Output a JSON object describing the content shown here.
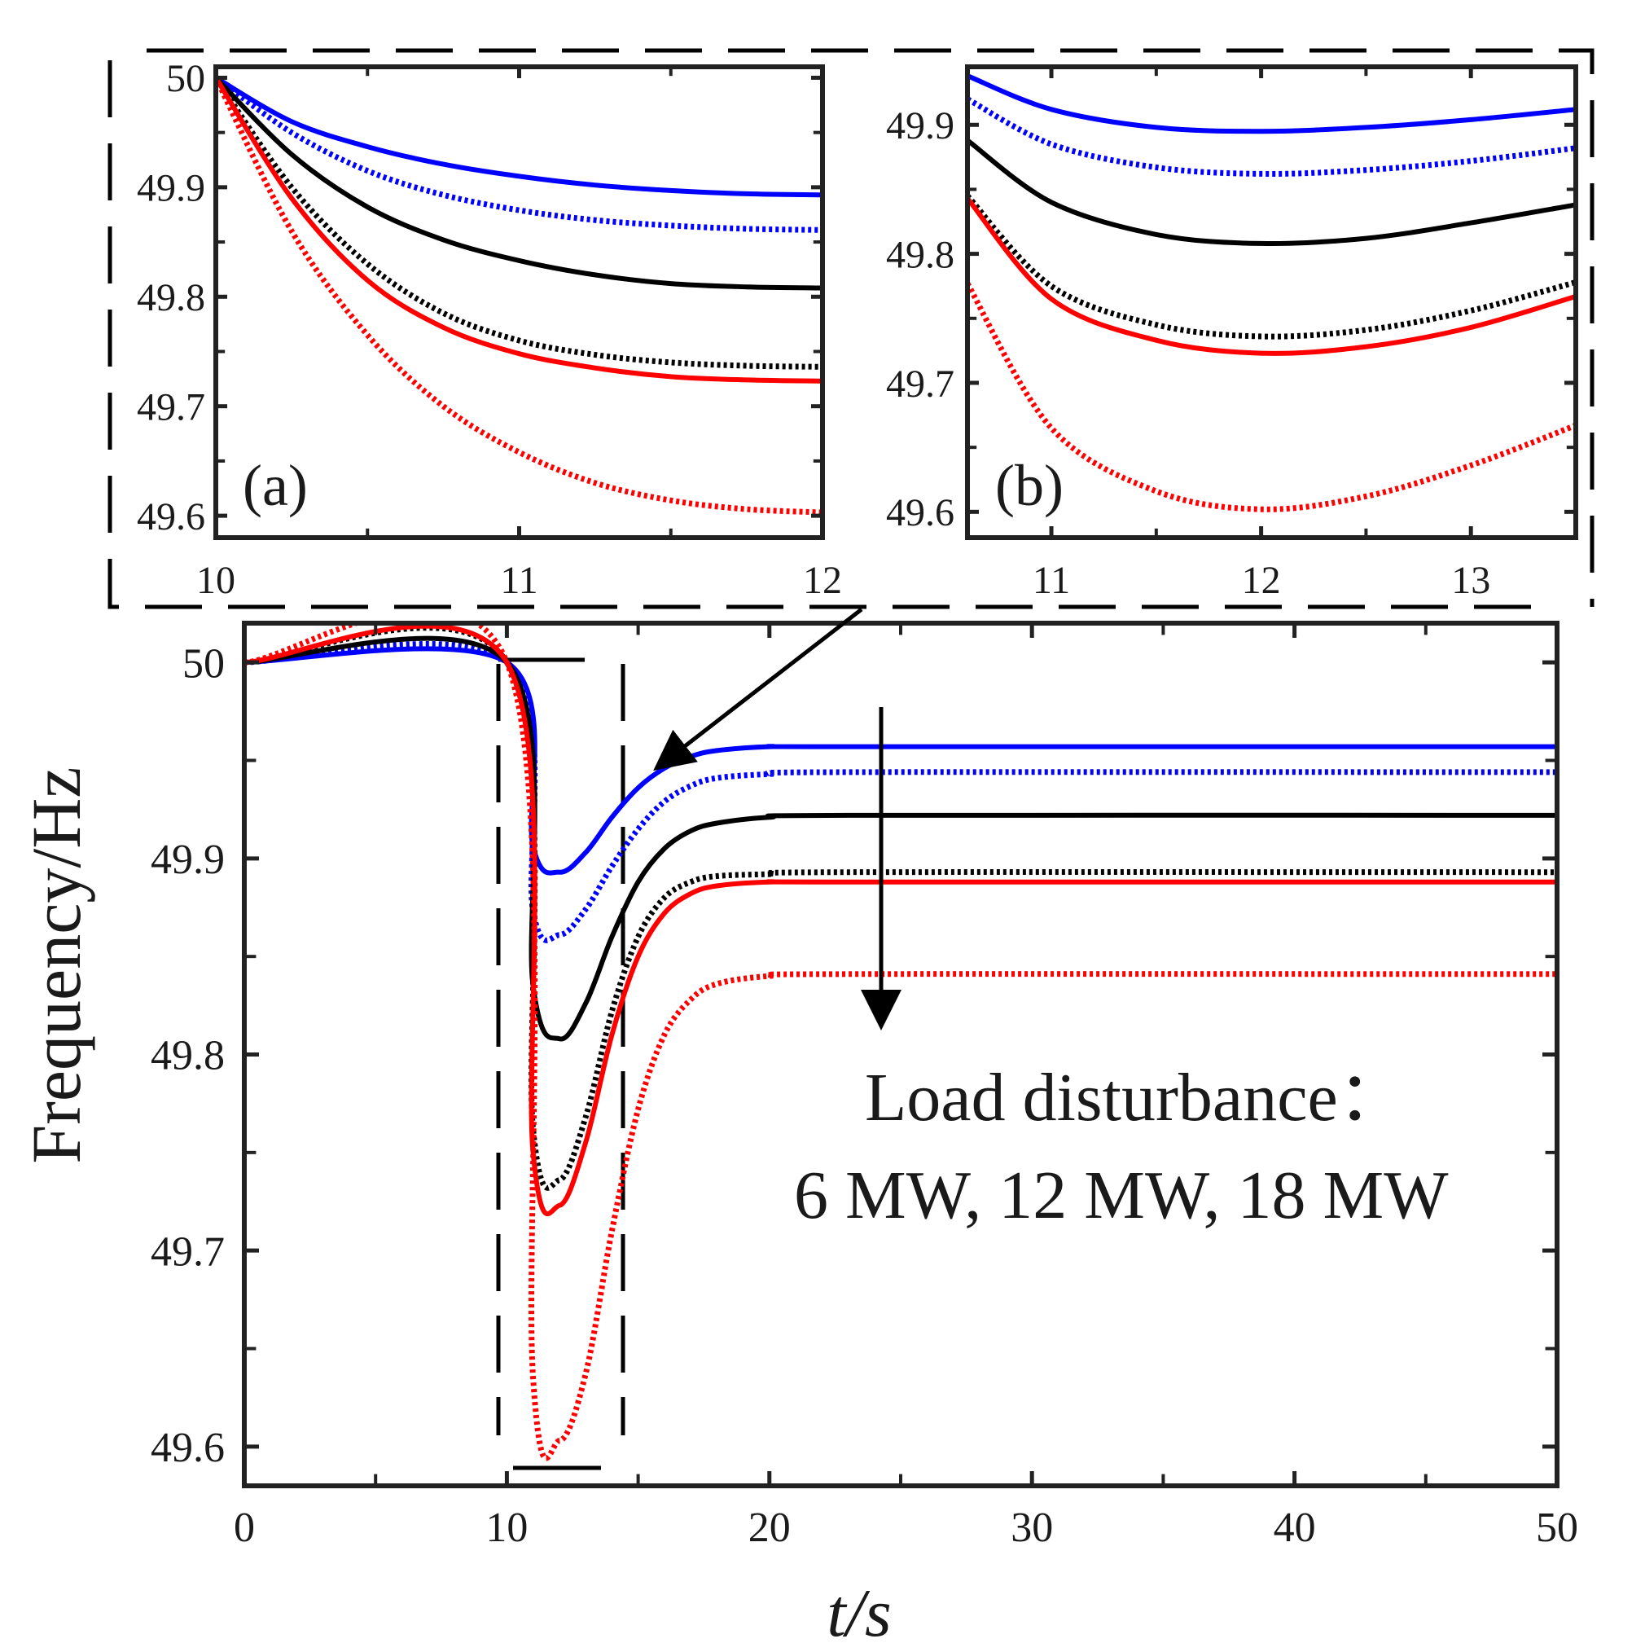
{
  "chart_data": [
    {
      "id": "main",
      "type": "line",
      "xlabel": "t/s",
      "ylabel": "Frequency/Hz",
      "xlim": [
        0,
        50
      ],
      "ylim": [
        49.58,
        50.02
      ],
      "xticks": [
        0,
        10,
        20,
        30,
        40,
        50
      ],
      "yticks": [
        49.6,
        49.7,
        49.8,
        49.9,
        50
      ],
      "ytick_labels": [
        "49.6",
        "49.7",
        "49.8",
        "49.9",
        "50"
      ],
      "annotation": [
        "Load disturbance：",
        "6 MW, 12 MW, 18 MW"
      ],
      "series": [
        {
          "color": "#0000ff",
          "style": "solid",
          "x": [
            0,
            10,
            11,
            12,
            13,
            14,
            15,
            16,
            17,
            18,
            20,
            23,
            50
          ],
          "y": [
            50,
            50,
            49.906,
            49.893,
            49.903,
            49.921,
            49.936,
            49.946,
            49.952,
            49.955,
            49.957,
            49.957,
            49.957
          ]
        },
        {
          "color": "#0000ff",
          "style": "dotted",
          "x": [
            0,
            10,
            11,
            12,
            13,
            14,
            15,
            16,
            17,
            18,
            20,
            23,
            50
          ],
          "y": [
            50,
            50,
            49.873,
            49.861,
            49.874,
            49.896,
            49.915,
            49.929,
            49.937,
            49.941,
            49.943,
            49.944,
            49.944
          ]
        },
        {
          "color": "#000000",
          "style": "solid",
          "x": [
            0,
            10,
            11,
            12,
            13,
            14,
            15,
            16,
            17,
            18,
            20,
            23,
            50
          ],
          "y": [
            50,
            50,
            49.835,
            49.808,
            49.826,
            49.86,
            49.888,
            49.905,
            49.914,
            49.918,
            49.921,
            49.922,
            49.922
          ]
        },
        {
          "color": "#000000",
          "style": "dotted",
          "x": [
            0,
            10,
            11,
            12,
            13,
            14,
            15,
            16,
            17,
            18,
            20,
            23,
            50
          ],
          "y": [
            50,
            50,
            49.762,
            49.736,
            49.768,
            49.822,
            49.86,
            49.88,
            49.888,
            49.891,
            49.892,
            49.893,
            49.893
          ]
        },
        {
          "color": "#ff0000",
          "style": "solid",
          "x": [
            0,
            10,
            11,
            12,
            13,
            14,
            15,
            16,
            17,
            18,
            20,
            23,
            50
          ],
          "y": [
            50,
            50,
            49.75,
            49.723,
            49.755,
            49.81,
            49.85,
            49.872,
            49.882,
            49.886,
            49.888,
            49.888,
            49.888
          ]
        },
        {
          "color": "#ff0000",
          "style": "dotted",
          "x": [
            0,
            10,
            11,
            12,
            13,
            14,
            15,
            16,
            17,
            18,
            20,
            23,
            50
          ],
          "y": [
            50,
            50,
            49.635,
            49.603,
            49.637,
            49.71,
            49.772,
            49.81,
            49.828,
            49.836,
            49.84,
            49.841,
            49.841
          ]
        }
      ]
    },
    {
      "id": "inset-a",
      "type": "line",
      "label": "(a)",
      "xlim": [
        10,
        12
      ],
      "ylim": [
        49.58,
        50.01
      ],
      "xticks": [
        10,
        11,
        12
      ],
      "yticks": [
        49.6,
        49.7,
        49.8,
        49.9,
        50
      ],
      "ytick_labels": [
        "49.6",
        "49.7",
        "49.8",
        "49.9",
        "50"
      ],
      "series": [
        {
          "color": "#0000ff",
          "style": "solid",
          "x": [
            10,
            10.25,
            10.5,
            10.75,
            11,
            11.25,
            11.5,
            11.75,
            12
          ],
          "y": [
            50,
            49.96,
            49.937,
            49.921,
            49.91,
            49.902,
            49.897,
            49.894,
            49.893
          ]
        },
        {
          "color": "#0000ff",
          "style": "dotted",
          "x": [
            10,
            10.25,
            10.5,
            10.75,
            11,
            11.25,
            11.5,
            11.75,
            12
          ],
          "y": [
            50,
            49.95,
            49.915,
            49.893,
            49.879,
            49.87,
            49.865,
            49.862,
            49.861
          ]
        },
        {
          "color": "#000000",
          "style": "solid",
          "x": [
            10,
            10.25,
            10.5,
            10.75,
            11,
            11.25,
            11.5,
            11.75,
            12
          ],
          "y": [
            50,
            49.93,
            49.882,
            49.852,
            49.833,
            49.82,
            49.812,
            49.809,
            49.808
          ]
        },
        {
          "color": "#000000",
          "style": "dotted",
          "x": [
            10,
            10.25,
            10.5,
            10.75,
            11,
            11.25,
            11.5,
            11.75,
            12
          ],
          "y": [
            50,
            49.9,
            49.83,
            49.785,
            49.76,
            49.747,
            49.74,
            49.737,
            49.736
          ]
        },
        {
          "color": "#ff0000",
          "style": "solid",
          "x": [
            10,
            10.25,
            10.5,
            10.75,
            11,
            11.25,
            11.5,
            11.75,
            12
          ],
          "y": [
            50,
            49.89,
            49.815,
            49.772,
            49.748,
            49.735,
            49.727,
            49.724,
            49.723
          ]
        },
        {
          "color": "#ff0000",
          "style": "dotted",
          "x": [
            10,
            10.25,
            10.5,
            10.75,
            11,
            11.25,
            11.5,
            11.75,
            12
          ],
          "y": [
            50,
            49.86,
            49.765,
            49.7,
            49.658,
            49.63,
            49.614,
            49.606,
            49.603
          ]
        }
      ]
    },
    {
      "id": "inset-b",
      "type": "line",
      "label": "(b)",
      "xlim": [
        10.6,
        13.5
      ],
      "ylim": [
        49.58,
        49.945
      ],
      "xticks": [
        11,
        12,
        13
      ],
      "yticks": [
        49.6,
        49.7,
        49.8,
        49.9
      ],
      "ytick_labels": [
        "49.6",
        "49.7",
        "49.8",
        "49.9"
      ],
      "series": [
        {
          "color": "#0000ff",
          "style": "solid",
          "x": [
            10.6,
            11,
            11.5,
            12,
            12.5,
            13,
            13.5
          ],
          "y": [
            49.938,
            49.912,
            49.898,
            49.895,
            49.898,
            49.904,
            49.912
          ]
        },
        {
          "color": "#0000ff",
          "style": "dotted",
          "x": [
            10.6,
            11,
            11.5,
            12,
            12.5,
            13,
            13.5
          ],
          "y": [
            49.92,
            49.885,
            49.867,
            49.862,
            49.865,
            49.872,
            49.882
          ]
        },
        {
          "color": "#000000",
          "style": "solid",
          "x": [
            10.6,
            11,
            11.5,
            12,
            12.5,
            13,
            13.5
          ],
          "y": [
            49.888,
            49.84,
            49.815,
            49.808,
            49.812,
            49.824,
            49.838
          ]
        },
        {
          "color": "#000000",
          "style": "dotted",
          "x": [
            10.6,
            11,
            11.5,
            12,
            12.5,
            13,
            13.5
          ],
          "y": [
            49.845,
            49.775,
            49.745,
            49.736,
            49.741,
            49.756,
            49.778
          ]
        },
        {
          "color": "#ff0000",
          "style": "solid",
          "x": [
            10.6,
            11,
            11.5,
            12,
            12.5,
            13,
            13.5
          ],
          "y": [
            49.843,
            49.765,
            49.733,
            49.723,
            49.728,
            49.743,
            49.767
          ]
        },
        {
          "color": "#ff0000",
          "style": "dotted",
          "x": [
            10.6,
            11,
            11.5,
            12,
            12.5,
            13,
            13.5
          ],
          "y": [
            49.777,
            49.665,
            49.616,
            49.602,
            49.612,
            49.636,
            49.667
          ]
        }
      ]
    }
  ]
}
